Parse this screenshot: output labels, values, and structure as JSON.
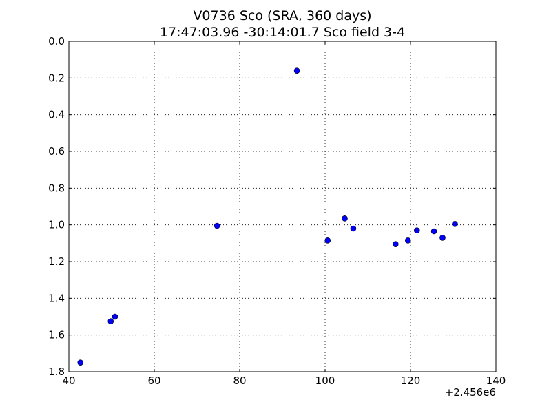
{
  "chart_data": {
    "type": "scatter",
    "title": "V0736 Sco (SRA, 360 days)",
    "subtitle": "17:47:03.96 -30:14:01.7 Sco field 3-4",
    "xlabel": "",
    "ylabel": "",
    "x_offset_label": "+2.456e6",
    "xlim": [
      40,
      140
    ],
    "ylim": [
      0.0,
      1.8
    ],
    "y_inverted": true,
    "grid": true,
    "x_ticks": [
      "40",
      "60",
      "80",
      "100",
      "120",
      "140"
    ],
    "y_ticks": [
      "0.0",
      "0.2",
      "0.4",
      "0.6",
      "0.8",
      "1.0",
      "1.2",
      "1.4",
      "1.6",
      "1.8"
    ],
    "marker_color": "#0000ff",
    "points": [
      {
        "x": 42.7,
        "y": 1.75
      },
      {
        "x": 49.8,
        "y": 1.525
      },
      {
        "x": 50.8,
        "y": 1.5
      },
      {
        "x": 74.7,
        "y": 1.005
      },
      {
        "x": 93.4,
        "y": 0.16
      },
      {
        "x": 100.6,
        "y": 1.085
      },
      {
        "x": 104.6,
        "y": 0.965
      },
      {
        "x": 106.6,
        "y": 1.02
      },
      {
        "x": 116.5,
        "y": 1.105
      },
      {
        "x": 119.4,
        "y": 1.085
      },
      {
        "x": 121.5,
        "y": 1.03
      },
      {
        "x": 125.5,
        "y": 1.035
      },
      {
        "x": 127.5,
        "y": 1.07
      },
      {
        "x": 130.4,
        "y": 0.995
      }
    ]
  }
}
